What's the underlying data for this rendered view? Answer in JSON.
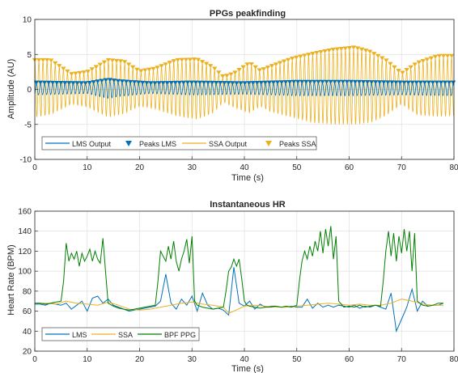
{
  "chart_data": [
    {
      "type": "line",
      "title": "PPGs peakfinding",
      "xlabel": "Time (s)",
      "ylabel": "Amplitude (AU)",
      "xlim": [
        0,
        80
      ],
      "ylim": [
        -10,
        10
      ],
      "xticks": [
        0,
        10,
        20,
        30,
        40,
        50,
        60,
        70,
        80
      ],
      "yticks": [
        -10,
        -5,
        0,
        5,
        10
      ],
      "grid": true,
      "legend": {
        "placement": "bottom-left",
        "orientation": "horizontal"
      },
      "series": [
        {
          "name": "LMS Output",
          "kind": "line",
          "color": "#0072BD",
          "envelope": {
            "x": [
              0,
              10,
              14,
              16,
              22,
              30,
              40,
              45,
              50,
              60,
              70,
              80
            ],
            "upper": [
              0.8,
              0.7,
              1.2,
              1.0,
              0.7,
              0.8,
              0.7,
              0.8,
              0.9,
              0.9,
              0.8,
              0.8
            ],
            "lower": [
              -0.8,
              -0.6,
              -1.3,
              -1.0,
              -0.6,
              -0.8,
              -0.7,
              -0.8,
              -0.9,
              -0.9,
              -0.8,
              -0.9
            ]
          }
        },
        {
          "name": "Peaks LMS",
          "kind": "peaks",
          "marker": "triangle-down",
          "color": "#0072BD"
        },
        {
          "name": "SSA Output",
          "kind": "line",
          "color": "#EDB120",
          "envelope": {
            "x": [
              0,
              3,
              7,
              10,
              14,
              17,
              20,
              23,
              27,
              31,
              34,
              36,
              38,
              41,
              43,
              45,
              49,
              53,
              57,
              61,
              64,
              67,
              70,
              73,
              77,
              80
            ],
            "upper": [
              4.0,
              4.0,
              2.0,
              2.3,
              4.0,
              3.8,
              2.4,
              2.8,
              4.0,
              4.1,
              3.0,
              1.6,
              2.1,
              3.6,
              2.5,
              3.1,
              4.2,
              4.9,
              5.5,
              5.8,
              5.2,
              4.0,
              2.1,
              3.6,
              4.6,
              4.6
            ],
            "lower": [
              -4.0,
              -3.6,
              -2.1,
              -2.5,
              -4.0,
              -3.5,
              -2.4,
              -2.8,
              -3.8,
              -4.3,
              -3.4,
              -1.8,
              -2.6,
              -3.4,
              -2.4,
              -3.2,
              -4.0,
              -4.8,
              -5.0,
              -5.0,
              -4.8,
              -3.8,
              -2.1,
              -3.7,
              -3.9,
              -3.8
            ]
          }
        },
        {
          "name": "Peaks SSA",
          "kind": "peaks",
          "marker": "triangle-down",
          "color": "#EDB120"
        }
      ]
    },
    {
      "type": "line",
      "title": "Instantaneous HR",
      "xlabel": "Time (s)",
      "ylabel": "Heart Rate (BPM)",
      "xlim": [
        0,
        80
      ],
      "ylim": [
        20,
        160
      ],
      "xticks": [
        0,
        10,
        20,
        30,
        40,
        50,
        60,
        70,
        80
      ],
      "yticks": [
        20,
        40,
        60,
        80,
        100,
        120,
        140,
        160
      ],
      "grid": true,
      "legend": {
        "placement": "bottom-left",
        "orientation": "horizontal"
      },
      "series": [
        {
          "name": "LMS",
          "color": "#0072BD",
          "x": [
            0,
            1,
            2,
            3,
            4,
            5,
            6,
            7,
            8,
            9,
            10,
            11,
            12,
            13,
            14,
            15,
            16,
            17,
            18,
            19,
            20,
            21,
            22,
            23,
            24,
            25,
            26,
            27,
            28,
            29,
            30,
            31,
            32,
            33,
            34,
            35,
            36,
            37,
            38,
            39,
            40,
            41,
            42,
            43,
            44,
            45,
            46,
            47,
            48,
            49,
            50,
            51,
            52,
            53,
            54,
            55,
            56,
            57,
            58,
            59,
            60,
            61,
            62,
            63,
            64,
            65,
            66,
            67,
            68,
            69,
            70,
            71,
            72,
            73,
            74,
            75,
            76,
            77,
            78
          ],
          "y": [
            67,
            67,
            66,
            68,
            67,
            66,
            68,
            62,
            66,
            70,
            60,
            73,
            75,
            68,
            72,
            66,
            64,
            62,
            60,
            61,
            62,
            63,
            64,
            65,
            70,
            97,
            68,
            62,
            72,
            66,
            75,
            60,
            78,
            66,
            62,
            63,
            61,
            56,
            104,
            68,
            65,
            70,
            62,
            67,
            64,
            65,
            65,
            64,
            64,
            65,
            64,
            64,
            72,
            63,
            68,
            64,
            66,
            64,
            66,
            65,
            64,
            66,
            63,
            65,
            64,
            66,
            64,
            62,
            78,
            40,
            52,
            64,
            82,
            60,
            70,
            65,
            66,
            66,
            68
          ]
        },
        {
          "name": "SSA",
          "color": "#EDB120",
          "x": [
            0,
            2,
            4,
            6,
            8,
            10,
            12,
            14,
            16,
            18,
            20,
            22,
            24,
            26,
            28,
            30,
            32,
            34,
            36,
            37,
            38,
            40,
            42,
            44,
            46,
            48,
            50,
            52,
            54,
            56,
            58,
            60,
            62,
            64,
            66,
            68,
            70,
            72,
            74,
            76,
            78
          ],
          "y": [
            68,
            68,
            67,
            70,
            68,
            67,
            66,
            69,
            66,
            62,
            61,
            62,
            64,
            66,
            68,
            69,
            67,
            66,
            64,
            58,
            60,
            65,
            66,
            65,
            64,
            64,
            65,
            66,
            67,
            68,
            67,
            66,
            67,
            66,
            66,
            68,
            72,
            70,
            67,
            66,
            66
          ]
        },
        {
          "name": "BPF PPG",
          "color": "#008000",
          "x": [
            0,
            1,
            2,
            3,
            4,
            5,
            5.5,
            6,
            6.5,
            7,
            7.5,
            8,
            8.5,
            9,
            9.5,
            10,
            10.5,
            11,
            11.5,
            12,
            12.5,
            13,
            13.5,
            14,
            15,
            16,
            17,
            18,
            19,
            20,
            21,
            22,
            23,
            23.5,
            24,
            24.5,
            25,
            25.5,
            26,
            26.5,
            27,
            27.5,
            28,
            28.5,
            29,
            29.5,
            30,
            30.5,
            31,
            32,
            33,
            34,
            35,
            36,
            36.5,
            37,
            37.5,
            38,
            38.5,
            39,
            39.5,
            40,
            40.5,
            41,
            42,
            43,
            44,
            45,
            46,
            47,
            48,
            49,
            50,
            50.5,
            51,
            51.5,
            52,
            52.5,
            53,
            53.5,
            54,
            54.5,
            55,
            55.5,
            56,
            56.5,
            57,
            57.5,
            58,
            59,
            60,
            61,
            62,
            63,
            64,
            65,
            66,
            66.5,
            67,
            67.5,
            68,
            68.5,
            69,
            69.5,
            70,
            70.5,
            71,
            71.5,
            72,
            72.5,
            73,
            74,
            75,
            76,
            77,
            78
          ],
          "y": [
            68,
            68,
            67,
            68,
            69,
            70,
            90,
            128,
            110,
            118,
            112,
            120,
            105,
            118,
            110,
            115,
            122,
            110,
            120,
            112,
            108,
            133,
            100,
            68,
            65,
            63,
            62,
            61,
            62,
            63,
            64,
            65,
            66,
            90,
            120,
            115,
            110,
            125,
            112,
            130,
            110,
            100,
            112,
            120,
            132,
            108,
            135,
            70,
            66,
            64,
            63,
            62,
            63,
            64,
            80,
            100,
            104,
            112,
            105,
            112,
            92,
            70,
            66,
            65,
            64,
            63,
            64,
            64,
            65,
            64,
            65,
            64,
            66,
            90,
            110,
            120,
            112,
            125,
            115,
            130,
            120,
            140,
            118,
            142,
            125,
            145,
            112,
            135,
            70,
            64,
            65,
            64,
            66,
            64,
            65,
            66,
            65,
            90,
            120,
            140,
            115,
            138,
            110,
            135,
            118,
            142,
            120,
            140,
            100,
            138,
            70,
            66,
            65,
            66,
            68,
            68
          ]
        }
      ]
    }
  ]
}
